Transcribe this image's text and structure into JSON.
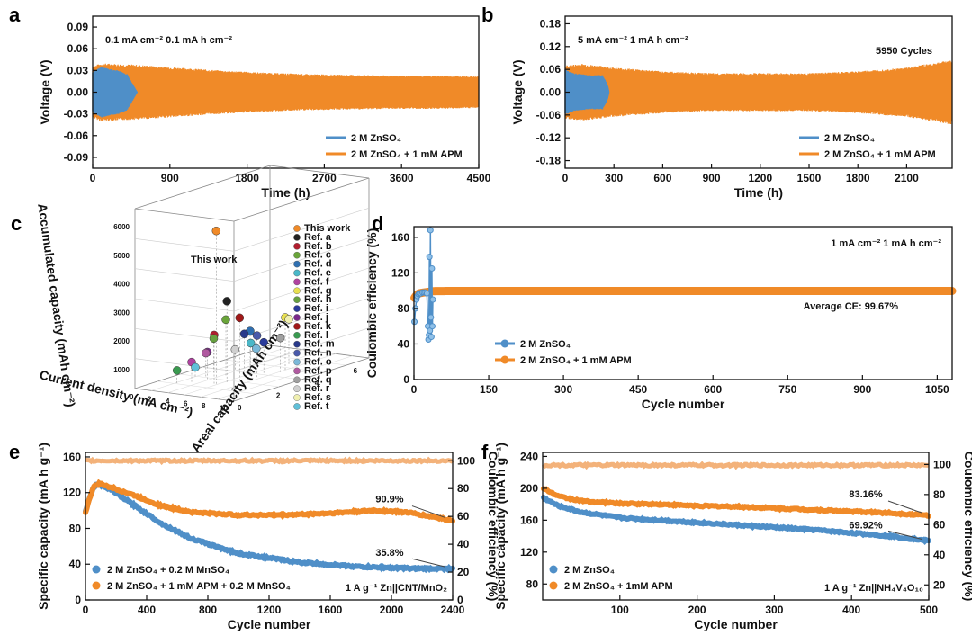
{
  "colors": {
    "blue": "#4f8fc8",
    "orange": "#f08a28",
    "red": "#c0392b"
  },
  "chart_data": [
    {
      "id": "a",
      "panel": "a",
      "type": "line",
      "title": "",
      "annotation": "0.1 mA cm⁻² 0.1 mA h cm⁻²",
      "xlabel": "Time (h)",
      "ylabel": "Voltage (V)",
      "xlim": [
        0,
        4500
      ],
      "ylim": [
        -0.105,
        0.105
      ],
      "xticks": [
        0,
        900,
        1800,
        2700,
        3600,
        4500
      ],
      "xtick_labels": [
        "0",
        "900",
        "1800",
        "2700",
        "3600",
        "4500"
      ],
      "yticks": [
        -0.09,
        -0.06,
        -0.03,
        0,
        0.03,
        0.06,
        0.09
      ],
      "ytick_labels": [
        "-0.09",
        "-0.06",
        "-0.03",
        "0.00",
        "0.03",
        "0.06",
        "0.09"
      ],
      "series": [
        {
          "name": "2 M ZnSO₄",
          "color": "#4f8fc8",
          "kind": "band",
          "x": [
            0,
            100,
            200,
            300,
            400,
            500,
            520
          ],
          "upper": [
            0.028,
            0.035,
            0.032,
            0.03,
            0.025,
            0.004,
            0.0
          ],
          "lower": [
            -0.028,
            -0.035,
            -0.032,
            -0.03,
            -0.025,
            -0.004,
            0.0
          ]
        },
        {
          "name": "2 M ZnSO₄ + 1 mM APM",
          "color": "#f08a28",
          "kind": "band",
          "x": [
            0,
            100,
            500,
            1000,
            1500,
            2000,
            2500,
            3000,
            3500,
            4000,
            4500
          ],
          "upper": [
            0.036,
            0.04,
            0.038,
            0.034,
            0.03,
            0.027,
            0.025,
            0.024,
            0.023,
            0.023,
            0.022
          ],
          "lower": [
            -0.036,
            -0.04,
            -0.038,
            -0.034,
            -0.03,
            -0.027,
            -0.025,
            -0.024,
            -0.023,
            -0.023,
            -0.022
          ]
        }
      ],
      "legend_position": "bottom-right"
    },
    {
      "id": "b",
      "panel": "b",
      "type": "line",
      "title": "",
      "annotation": "5 mA cm⁻² 1 mA h cm⁻²",
      "annotation2": "5950 Cycles",
      "xlabel": "Time (h)",
      "ylabel": "Voltage (V)",
      "xlim": [
        0,
        2380
      ],
      "ylim": [
        -0.2,
        0.2
      ],
      "xticks": [
        0,
        300,
        600,
        900,
        1200,
        1500,
        1800,
        2100
      ],
      "xtick_labels": [
        "0",
        "300",
        "600",
        "900",
        "1200",
        "1500",
        "1800",
        "2100"
      ],
      "yticks": [
        -0.18,
        -0.12,
        -0.06,
        0,
        0.06,
        0.12,
        0.18
      ],
      "ytick_labels": [
        "-0.18",
        "-0.12",
        "-0.06",
        "0.00",
        "0.06",
        "0.12",
        "0.18"
      ],
      "series": [
        {
          "name": "2 M ZnSO₄",
          "color": "#4f8fc8",
          "kind": "band",
          "x": [
            0,
            50,
            150,
            230,
            260,
            270
          ],
          "upper": [
            0.06,
            0.05,
            0.045,
            0.045,
            0.02,
            0.0
          ],
          "lower": [
            -0.06,
            -0.05,
            -0.045,
            -0.045,
            -0.02,
            0.0
          ]
        },
        {
          "name": "2 M ZnSO₄ + 1 mM APM",
          "color": "#f08a28",
          "kind": "band",
          "x": [
            0,
            100,
            300,
            600,
            900,
            1200,
            1500,
            1800,
            2100,
            2380
          ],
          "upper": [
            0.07,
            0.075,
            0.065,
            0.055,
            0.05,
            0.05,
            0.05,
            0.055,
            0.065,
            0.085
          ],
          "lower": [
            -0.07,
            -0.075,
            -0.065,
            -0.055,
            -0.05,
            -0.05,
            -0.05,
            -0.055,
            -0.065,
            -0.085
          ]
        }
      ],
      "legend_position": "bottom-right"
    },
    {
      "id": "c",
      "panel": "c",
      "type": "scatter",
      "annotation": "This work",
      "zlabel": "Accumulated capacity (mAh cm⁻²)",
      "xlabel": "Current density (mA cm⁻²)",
      "ylabel": "Areal capacity (mAh cm⁻²)",
      "zticks": [
        "1000",
        "2000",
        "3000",
        "4000",
        "5000",
        "6000"
      ],
      "xticks": [
        "0",
        "2",
        "4",
        "6",
        "8",
        "10"
      ],
      "yticks": [
        "0",
        "2",
        "4",
        "6"
      ],
      "legend": [
        "This work",
        "Ref. a",
        "Ref. b",
        "Ref. c",
        "Ref. d",
        "Ref. e",
        "Ref. f",
        "Ref. g",
        "Ref. h",
        "Ref. i",
        "Ref. j",
        "Ref. k",
        "Ref. l",
        "Ref. m",
        "Ref. n",
        "Ref. o",
        "Ref. p",
        "Ref. q",
        "Ref. r",
        "Ref. s",
        "Ref. t"
      ],
      "legend_colors": [
        "#f08a28",
        "#222222",
        "#b01d2e",
        "#6aa53a",
        "#2f6fb0",
        "#4ab8c8",
        "#b042a0",
        "#e8e050",
        "#66a040",
        "#2a3a9a",
        "#7a2a8a",
        "#a01818",
        "#3a9a50",
        "#2a3a8a",
        "#4a5aaa",
        "#7ab8d8",
        "#b05aa0",
        "#a0a0a0",
        "#d0d0d0",
        "#f0f0b0",
        "#60c0d8"
      ]
    },
    {
      "id": "d",
      "panel": "d",
      "type": "scatter",
      "annotation": "1 mA cm⁻² 1 mA h cm⁻²",
      "annotation2": "Average CE: 99.67%",
      "xlabel": "Cycle number",
      "ylabel": "Coulombic efficiency (%)",
      "xlim": [
        0,
        1080
      ],
      "ylim": [
        0,
        172
      ],
      "xticks": [
        0,
        150,
        300,
        450,
        600,
        750,
        900,
        1050
      ],
      "xtick_labels": [
        "0",
        "150",
        "300",
        "450",
        "600",
        "750",
        "900",
        "1050"
      ],
      "yticks": [
        0,
        40,
        80,
        120,
        160
      ],
      "ytick_labels": [
        "0",
        "40",
        "80",
        "120",
        "160"
      ],
      "series": [
        {
          "name": "2 M ZnSO₄",
          "color": "#4f8fc8",
          "x": [
            1,
            3,
            5,
            7,
            9,
            11,
            14,
            17,
            20,
            23,
            26,
            28,
            29,
            30,
            31,
            32,
            33,
            34,
            35,
            36,
            37,
            38
          ],
          "y": [
            65,
            80,
            90,
            94,
            96,
            97,
            97,
            98,
            98,
            98,
            97,
            60,
            45,
            50,
            138,
            55,
            168,
            70,
            48,
            125,
            60,
            90
          ]
        },
        {
          "name": "2 M ZnSO₄ + 1 mM APM",
          "color": "#f08a28",
          "x": [
            1,
            5,
            10,
            20,
            40,
            80,
            150,
            300,
            450,
            600,
            750,
            900,
            1050,
            1080
          ],
          "y": [
            92,
            95,
            97,
            98,
            99.5,
            99.7,
            99.7,
            99.7,
            99.7,
            99.7,
            99.7,
            99.7,
            99.7,
            99.7
          ]
        }
      ],
      "legend_position": "bottom-left"
    },
    {
      "id": "e",
      "panel": "e",
      "type": "scatter",
      "annotation": "1 A g⁻¹ Zn||CNT/MnO₂",
      "label_orange": "90.9%",
      "label_blue": "35.8%",
      "xlabel": "Cycle number",
      "ylabel": "Specific capacity (mA h g⁻¹)",
      "ylabel2": "Coulombic efficiency (%)",
      "xlim": [
        0,
        2400
      ],
      "ylim": [
        0,
        165
      ],
      "y2lim": [
        0,
        106
      ],
      "xticks": [
        0,
        400,
        800,
        1200,
        1600,
        2000,
        2400
      ],
      "xtick_labels": [
        "0",
        "400",
        "800",
        "1200",
        "1600",
        "2000",
        "2400"
      ],
      "yticks": [
        0,
        40,
        80,
        120,
        160
      ],
      "ytick_labels": [
        "0",
        "40",
        "80",
        "120",
        "160"
      ],
      "y2ticks": [
        0,
        20,
        40,
        60,
        80,
        100
      ],
      "y2tick_labels": [
        "0",
        "20",
        "40",
        "60",
        "80",
        "100"
      ],
      "series": [
        {
          "name": "2 M ZnSO₄ + 0.2 M MnSO₄",
          "color": "#4f8fc8",
          "x": [
            0,
            50,
            80,
            150,
            300,
            500,
            700,
            1000,
            1400,
            1800,
            2200,
            2400
          ],
          "y": [
            100,
            125,
            130,
            125,
            108,
            85,
            68,
            52,
            42,
            37,
            35,
            35
          ]
        },
        {
          "name": "2 M ZnSO₄ + 1 mM APM + 0.2 M MnSO₄",
          "color": "#f08a28",
          "x": [
            0,
            50,
            90,
            150,
            300,
            500,
            700,
            1000,
            1300,
            1600,
            1900,
            2100,
            2300,
            2400
          ],
          "y": [
            98,
            126,
            130,
            127,
            118,
            105,
            98,
            95,
            95,
            97,
            100,
            98,
            92,
            89
          ]
        },
        {
          "name": "CE",
          "color": "#f08a28",
          "axis": "right",
          "x": [
            0,
            2400
          ],
          "y": [
            100,
            100
          ]
        }
      ],
      "legend_position": "bottom-left"
    },
    {
      "id": "f",
      "panel": "f",
      "type": "scatter",
      "annotation": "1 A g⁻¹  Zn||NH₄V₄O₁₀",
      "label_orange": "83.16%",
      "label_blue": "69.92%",
      "xlabel": "Cycle number",
      "ylabel": "Specific capacity (mA h g⁻¹)",
      "ylabel2": "Coulombic efficiency (%)",
      "xlim": [
        0,
        500
      ],
      "ylim": [
        60,
        245
      ],
      "y2lim": [
        10,
        108
      ],
      "xticks": [
        100,
        200,
        300,
        400,
        500
      ],
      "xtick_labels": [
        "100",
        "200",
        "300",
        "400",
        "500"
      ],
      "yticks": [
        80,
        120,
        160,
        200,
        240
      ],
      "ytick_labels": [
        "80",
        "120",
        "160",
        "200",
        "240"
      ],
      "y2ticks": [
        20,
        40,
        60,
        80,
        100
      ],
      "y2tick_labels": [
        "20",
        "40",
        "60",
        "80",
        "100"
      ],
      "series": [
        {
          "name": "2 M ZnSO₄",
          "color": "#4f8fc8",
          "x": [
            1,
            20,
            50,
            100,
            150,
            200,
            250,
            300,
            350,
            400,
            450,
            500
          ],
          "y": [
            188,
            178,
            170,
            163,
            160,
            157,
            154,
            151,
            148,
            144,
            140,
            134
          ]
        },
        {
          "name": "2 M ZnSO₄ + 1mM APM",
          "color": "#f08a28",
          "x": [
            1,
            20,
            50,
            100,
            150,
            200,
            250,
            300,
            350,
            400,
            450,
            500
          ],
          "y": [
            200,
            190,
            184,
            181,
            180,
            178,
            177,
            175,
            173,
            171,
            169,
            166
          ]
        },
        {
          "name": "CE",
          "color": "#f08a28",
          "axis": "right",
          "x": [
            1,
            500
          ],
          "y": [
            99.5,
            99.5
          ]
        }
      ],
      "legend_position": "bottom-left"
    }
  ]
}
